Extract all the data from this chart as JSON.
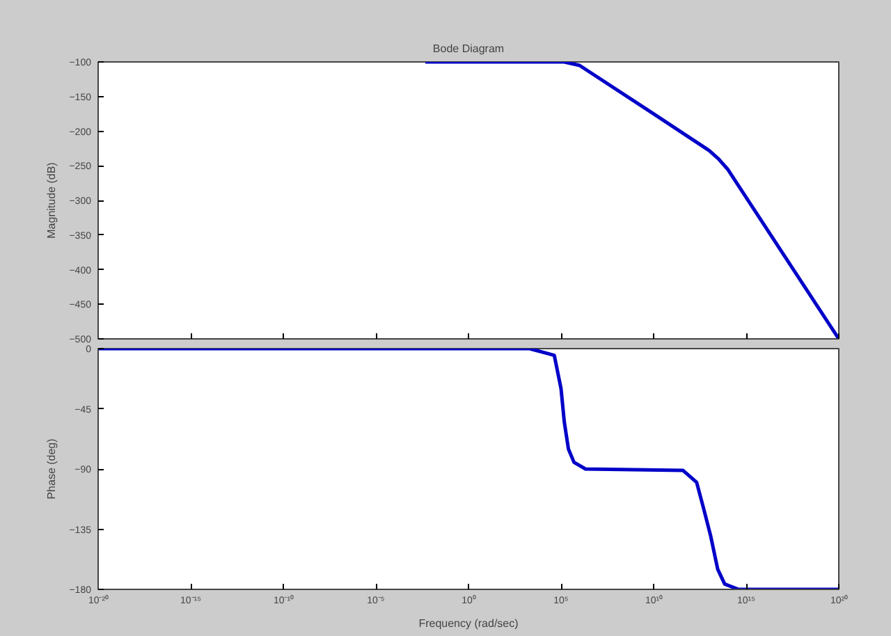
{
  "chart_data": [
    {
      "type": "line",
      "title": "Bode Diagram",
      "ylabel": "Magnitude (dB)",
      "log": "x",
      "grid": false,
      "tick_labels": "y",
      "xlim": [
        1e-20,
        1e+20
      ],
      "ylim": [
        -500,
        -100
      ],
      "yticks": [
        -500,
        -450,
        -400,
        -350,
        -300,
        -250,
        -200,
        -150,
        -100
      ],
      "series": [
        {
          "color": "#0000c8",
          "x": [
            0.0047,
            150000,
            1000000,
            10000000000,
            10000000000000.0,
            32000000000000.0,
            100000000000000.0,
            1e+20
          ],
          "values": [
            -100,
            -100,
            -105,
            -175,
            -228,
            -240,
            -255,
            -500
          ]
        }
      ]
    },
    {
      "type": "line",
      "xlabel": "Frequency (rad/sec)",
      "ylabel": "Phase (deg)",
      "log": "x",
      "grid": false,
      "xlim": [
        1e-20,
        1e+20
      ],
      "ylim": [
        -180,
        0
      ],
      "yticks": [
        -180,
        -135,
        -90,
        -45,
        0
      ],
      "xticks": [
        {
          "value": 1e-20,
          "label": "10⁻²⁰"
        },
        {
          "value": 1e-15,
          "label": "10⁻¹⁵"
        },
        {
          "value": 1e-10,
          "label": "10⁻¹⁰"
        },
        {
          "value": 1e-05,
          "label": "10⁻⁵"
        },
        {
          "value": 1,
          "label": "10⁰"
        },
        {
          "value": 100000,
          "label": "10⁵"
        },
        {
          "value": 10000000000,
          "label": "10¹⁰"
        },
        {
          "value": 1000000000000000.0,
          "label": "10¹⁵"
        },
        {
          "value": 1e+20,
          "label": "10²⁰"
        }
      ],
      "series": [
        {
          "color": "#0000c8",
          "x": [
            1e-20,
            2000,
            43000,
            100000,
            150000,
            250000,
            500000,
            2100000,
            380000000000,
            2100000000000,
            5100000000000,
            12000000000000.0,
            29000000000000.0,
            69000000000000.0,
            390000000000000.0,
            1e+20
          ],
          "values": [
            0,
            0,
            -5,
            -30,
            -55,
            -75,
            -85,
            -90,
            -91,
            -100,
            -120,
            -140,
            -165,
            -176,
            -180,
            -180
          ]
        }
      ]
    }
  ]
}
